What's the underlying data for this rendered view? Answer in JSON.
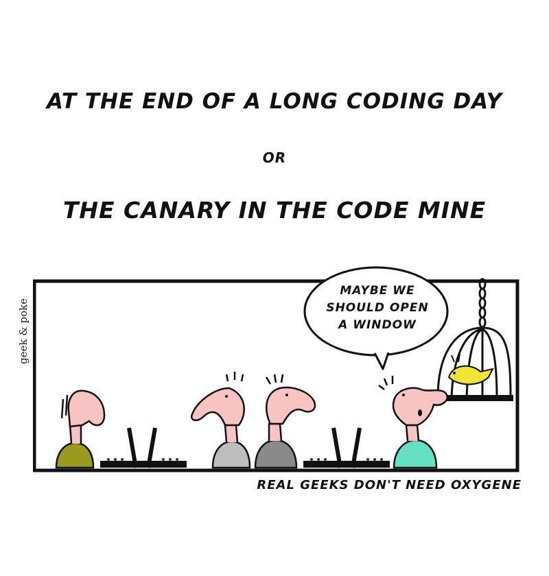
{
  "comic": {
    "title_line1": "AT THE END OF A LONG CODING DAY",
    "title_or": "OR",
    "title_line2": "THE CANARY IN THE CODE MINE",
    "signature": "geek & poke",
    "speech_bubble": [
      "MAYBE WE",
      "SHOULD OPEN",
      "A WINDOW"
    ],
    "caption": "REAL GEEKS DON'T NEED OXYGENE"
  }
}
